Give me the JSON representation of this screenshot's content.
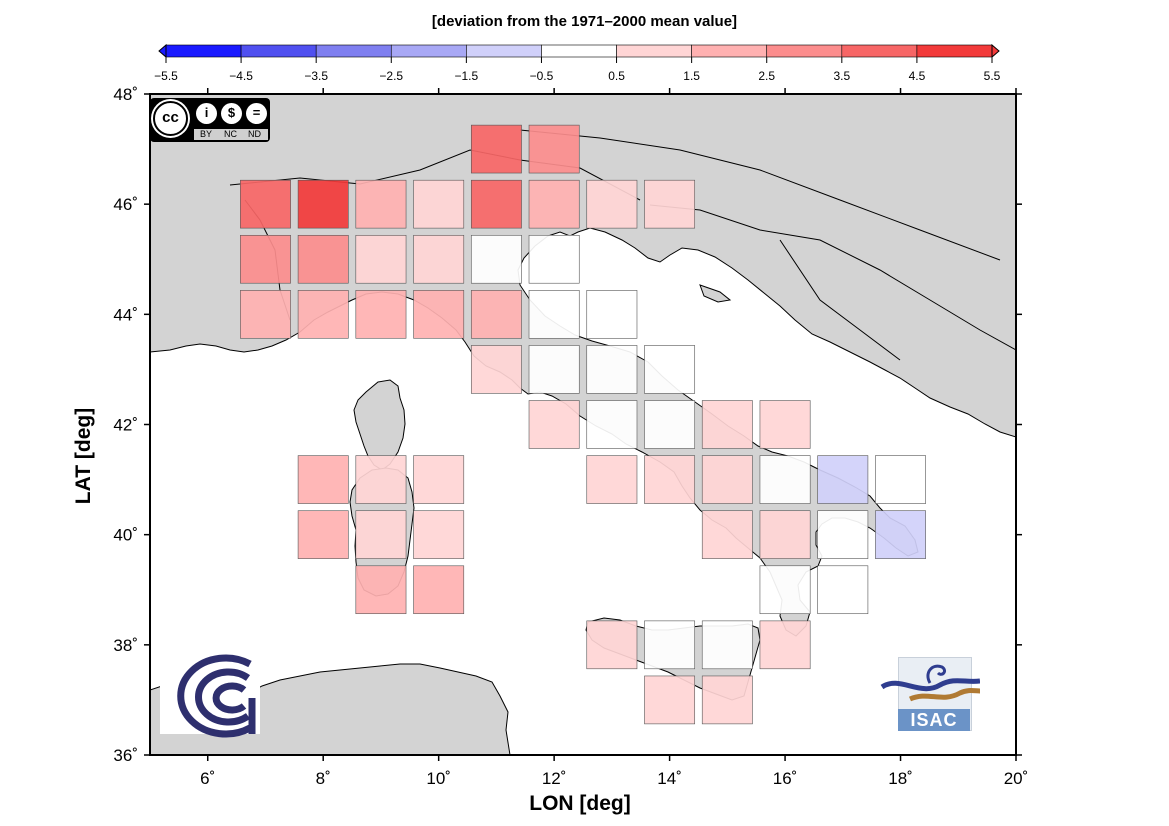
{
  "colorbar": {
    "title": "[deviation from the 1971–2000 mean value]",
    "tick_labels": [
      "−5.5",
      "−4.5",
      "−3.5",
      "−2.5",
      "−1.5",
      "−0.5",
      "0.5",
      "1.5",
      "2.5",
      "3.5",
      "4.5",
      "5.5"
    ],
    "bounds": [
      -5.5,
      -4.5,
      -3.5,
      -2.5,
      -1.5,
      -0.5,
      0.5,
      1.5,
      2.5,
      3.5,
      4.5,
      5.5
    ],
    "colors": [
      "#1a1aff",
      "#5050f0",
      "#7f7ff0",
      "#a8a8f5",
      "#d0d0fa",
      "#ffffff",
      "#ffd5d5",
      "#ffb1b1",
      "#fc8d8d",
      "#f76666",
      "#f23a3a"
    ]
  },
  "map": {
    "xlabel": "LON [deg]",
    "ylabel": "LAT [deg]",
    "lon_range": [
      5,
      20
    ],
    "lat_range": [
      36,
      48
    ],
    "x_ticks": [
      6,
      8,
      10,
      12,
      14,
      16,
      18,
      20
    ],
    "y_ticks": [
      36,
      38,
      40,
      42,
      44,
      46,
      48
    ],
    "x_tick_labels": [
      "6˚",
      "8˚",
      "10˚",
      "12˚",
      "14˚",
      "16˚",
      "18˚",
      "20˚"
    ],
    "y_tick_labels": [
      "36˚",
      "38˚",
      "40˚",
      "42˚",
      "44˚",
      "46˚",
      "48˚"
    ],
    "land_color": "#d3d3d3",
    "sea_color": "#ffffff",
    "cell_size_deg": 0.87
  },
  "grid_cells": [
    {
      "lon": 11.0,
      "lat": 47.0,
      "value": 4.0
    },
    {
      "lon": 12.0,
      "lat": 47.0,
      "value": 3.0
    },
    {
      "lon": 7.0,
      "lat": 46.0,
      "value": 4.0
    },
    {
      "lon": 8.0,
      "lat": 46.0,
      "value": 5.0
    },
    {
      "lon": 9.0,
      "lat": 46.0,
      "value": 2.0
    },
    {
      "lon": 10.0,
      "lat": 46.0,
      "value": 1.0
    },
    {
      "lon": 11.0,
      "lat": 46.0,
      "value": 4.0
    },
    {
      "lon": 12.0,
      "lat": 46.0,
      "value": 2.0
    },
    {
      "lon": 13.0,
      "lat": 46.0,
      "value": 1.0
    },
    {
      "lon": 14.0,
      "lat": 46.0,
      "value": 1.0
    },
    {
      "lon": 7.0,
      "lat": 45.0,
      "value": 3.0
    },
    {
      "lon": 8.0,
      "lat": 45.0,
      "value": 3.0
    },
    {
      "lon": 9.0,
      "lat": 45.0,
      "value": 1.0
    },
    {
      "lon": 10.0,
      "lat": 45.0,
      "value": 1.0
    },
    {
      "lon": 11.0,
      "lat": 45.0,
      "value": 0.0
    },
    {
      "lon": 12.0,
      "lat": 45.0,
      "value": 0.0
    },
    {
      "lon": 7.0,
      "lat": 44.0,
      "value": 2.0
    },
    {
      "lon": 8.0,
      "lat": 44.0,
      "value": 2.0
    },
    {
      "lon": 9.0,
      "lat": 44.0,
      "value": 2.0
    },
    {
      "lon": 10.0,
      "lat": 44.0,
      "value": 2.0
    },
    {
      "lon": 11.0,
      "lat": 44.0,
      "value": 2.0
    },
    {
      "lon": 12.0,
      "lat": 44.0,
      "value": 0.0
    },
    {
      "lon": 13.0,
      "lat": 44.0,
      "value": 0.0
    },
    {
      "lon": 11.0,
      "lat": 43.0,
      "value": 1.0
    },
    {
      "lon": 12.0,
      "lat": 43.0,
      "value": 0.0
    },
    {
      "lon": 13.0,
      "lat": 43.0,
      "value": 0.0
    },
    {
      "lon": 14.0,
      "lat": 43.0,
      "value": 0.0
    },
    {
      "lon": 12.0,
      "lat": 42.0,
      "value": 1.0
    },
    {
      "lon": 13.0,
      "lat": 42.0,
      "value": 0.0
    },
    {
      "lon": 14.0,
      "lat": 42.0,
      "value": 0.0
    },
    {
      "lon": 15.0,
      "lat": 42.0,
      "value": 1.0
    },
    {
      "lon": 16.0,
      "lat": 42.0,
      "value": 1.0
    },
    {
      "lon": 8.0,
      "lat": 41.0,
      "value": 2.0
    },
    {
      "lon": 9.0,
      "lat": 41.0,
      "value": 1.0
    },
    {
      "lon": 10.0,
      "lat": 41.0,
      "value": 1.0
    },
    {
      "lon": 13.0,
      "lat": 41.0,
      "value": 1.0
    },
    {
      "lon": 14.0,
      "lat": 41.0,
      "value": 1.0
    },
    {
      "lon": 15.0,
      "lat": 41.0,
      "value": 1.0
    },
    {
      "lon": 16.0,
      "lat": 41.0,
      "value": 0.0
    },
    {
      "lon": 17.0,
      "lat": 41.0,
      "value": -1.0
    },
    {
      "lon": 18.0,
      "lat": 41.0,
      "value": 0.0
    },
    {
      "lon": 8.0,
      "lat": 40.0,
      "value": 2.0
    },
    {
      "lon": 9.0,
      "lat": 40.0,
      "value": 1.0
    },
    {
      "lon": 10.0,
      "lat": 40.0,
      "value": 1.0
    },
    {
      "lon": 15.0,
      "lat": 40.0,
      "value": 1.0
    },
    {
      "lon": 16.0,
      "lat": 40.0,
      "value": 1.0
    },
    {
      "lon": 17.0,
      "lat": 40.0,
      "value": 0.0
    },
    {
      "lon": 18.0,
      "lat": 40.0,
      "value": -1.0
    },
    {
      "lon": 9.0,
      "lat": 39.0,
      "value": 2.0
    },
    {
      "lon": 10.0,
      "lat": 39.0,
      "value": 2.0
    },
    {
      "lon": 16.0,
      "lat": 39.0,
      "value": 0.0
    },
    {
      "lon": 17.0,
      "lat": 39.0,
      "value": 0.0
    },
    {
      "lon": 13.0,
      "lat": 38.0,
      "value": 1.0
    },
    {
      "lon": 14.0,
      "lat": 38.0,
      "value": 0.0
    },
    {
      "lon": 15.0,
      "lat": 38.0,
      "value": 0.0
    },
    {
      "lon": 16.0,
      "lat": 38.0,
      "value": 1.0
    },
    {
      "lon": 14.0,
      "lat": 37.0,
      "value": 1.0
    },
    {
      "lon": 15.0,
      "lat": 37.0,
      "value": 1.0
    }
  ],
  "logos": {
    "license_icon": "creative-commons-by-nc-nd-icon",
    "license_big": "cc",
    "license_small_symbols": [
      "i",
      "$",
      "="
    ],
    "license_terms": [
      "BY",
      "NC",
      "ND"
    ],
    "cnr_logo": "cnr-logo",
    "isac_logo": "isac-logo",
    "isac_wordmark": "ISAC",
    "cnr_color": "#2e2f6e"
  }
}
